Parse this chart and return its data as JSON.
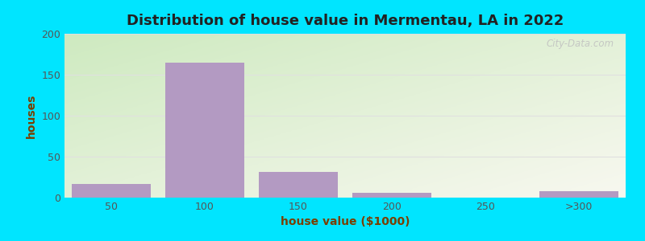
{
  "title": "Distribution of house value in Mermentau, LA in 2022",
  "xlabel": "house value ($1000)",
  "ylabel": "houses",
  "bar_color": "#b39ac2",
  "figure_bg": "#00e5ff",
  "plot_bg_topleft": "#ceeac0",
  "plot_bg_bottomright": "#f5f5ee",
  "categories": [
    "50",
    "100",
    "150",
    "200",
    "250",
    ">300"
  ],
  "values": [
    17,
    165,
    31,
    6,
    0,
    8
  ],
  "ylim": [
    0,
    200
  ],
  "yticks": [
    0,
    50,
    100,
    150,
    200
  ],
  "watermark": "City-Data.com",
  "title_fontsize": 13,
  "label_fontsize": 10,
  "tick_fontsize": 9,
  "title_color": "#222222",
  "label_color": "#7a3e00",
  "tick_color": "#555555",
  "grid_color": "#e0e0e0"
}
